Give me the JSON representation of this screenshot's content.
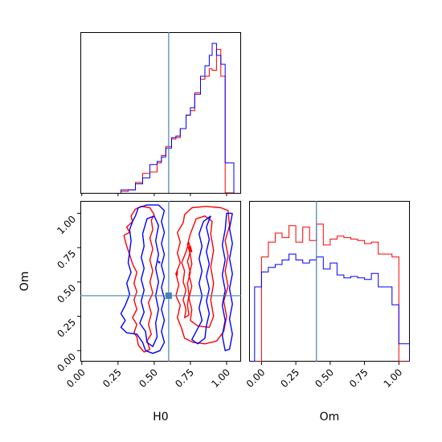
{
  "chart_data": {
    "type": "corner",
    "parameters": [
      "H0",
      "Om"
    ],
    "truth": {
      "H0": 0.6,
      "Om": 0.4
    },
    "series_colors": [
      "#ff0000",
      "#0000ff"
    ],
    "truth_color": "#4682b4",
    "grid": false,
    "axes": {
      "H0": {
        "xlim": [
          -0.01,
          1.1
        ],
        "ticks": [
          0.0,
          0.25,
          0.5,
          0.75,
          1.0
        ],
        "tick_labels": [
          "0.00",
          "0.25",
          "0.50",
          "0.75",
          "1.00"
        ],
        "xlabel": "H0"
      },
      "Om": {
        "xlim": [
          -0.09,
          1.08
        ],
        "ylim": [
          -0.08,
          1.09
        ],
        "ticks": [
          0.0,
          0.25,
          0.5,
          0.75,
          1.0
        ],
        "tick_labels": [
          "0.00",
          "0.25",
          "0.50",
          "0.75",
          "1.00"
        ],
        "xlabel": "Om",
        "ylabel": "Om"
      }
    },
    "histograms": {
      "H0": {
        "bin_edges": [
          0.27,
          0.32,
          0.37,
          0.42,
          0.47,
          0.52,
          0.55,
          0.58,
          0.62,
          0.65,
          0.68,
          0.72,
          0.75,
          0.78,
          0.82,
          0.85,
          0.88,
          0.9,
          0.93,
          0.96,
          0.99,
          1.05
        ],
        "series": [
          {
            "color": "#ff0000",
            "values": [
              0.01,
              0.02,
              0.07,
              0.13,
              0.14,
              0.2,
              0.25,
              0.31,
              0.36,
              0.37,
              0.43,
              0.52,
              0.55,
              0.67,
              0.76,
              0.78,
              0.83,
              0.82,
              0.96,
              0.78,
              0.0
            ]
          },
          {
            "color": "#0000ff",
            "values": [
              0.02,
              0.02,
              0.06,
              0.1,
              0.19,
              0.21,
              0.24,
              0.3,
              0.37,
              0.38,
              0.43,
              0.52,
              0.57,
              0.66,
              0.78,
              0.85,
              0.92,
              1.0,
              0.92,
              0.86,
              0.2
            ]
          }
        ]
      },
      "Om": {
        "bin_edges": [
          -0.09,
          -0.05,
          0.0,
          0.05,
          0.1,
          0.15,
          0.2,
          0.25,
          0.3,
          0.35,
          0.4,
          0.45,
          0.5,
          0.55,
          0.6,
          0.65,
          0.7,
          0.75,
          0.8,
          0.85,
          0.9,
          0.95,
          1.0,
          1.08
        ],
        "series": [
          {
            "color": "#ff0000",
            "values": [
              0.0,
              0.0,
              0.7,
              0.8,
              0.86,
              0.83,
              0.91,
              0.8,
              0.9,
              0.81,
              0.92,
              0.78,
              0.82,
              0.84,
              0.83,
              0.82,
              0.81,
              0.79,
              0.8,
              0.72,
              0.72,
              0.7,
              0.0
            ]
          },
          {
            "color": "#0000ff",
            "values": [
              0.0,
              0.5,
              0.6,
              0.63,
              0.65,
              0.68,
              0.72,
              0.68,
              0.66,
              0.68,
              0.7,
              0.62,
              0.66,
              0.58,
              0.56,
              0.57,
              0.56,
              0.55,
              0.59,
              0.5,
              0.5,
              0.38,
              0.12
            ]
          }
        ]
      }
    },
    "contours": [
      {
        "color": "#ff0000",
        "points": [
          [
            0.29,
            0.84
          ],
          [
            0.33,
            0.86
          ],
          [
            0.31,
            0.9
          ],
          [
            0.35,
            0.94
          ],
          [
            0.34,
            0.98
          ],
          [
            0.37,
            1.03
          ],
          [
            0.41,
            1.05
          ],
          [
            0.47,
            1.04
          ],
          [
            0.5,
            0.99
          ],
          [
            0.48,
            0.95
          ],
          [
            0.49,
            0.88
          ],
          [
            0.47,
            0.82
          ],
          [
            0.49,
            0.74
          ],
          [
            0.47,
            0.66
          ],
          [
            0.49,
            0.58
          ],
          [
            0.47,
            0.5
          ],
          [
            0.49,
            0.42
          ],
          [
            0.46,
            0.35
          ],
          [
            0.48,
            0.27
          ],
          [
            0.46,
            0.19
          ],
          [
            0.48,
            0.12
          ],
          [
            0.45,
            0.07
          ],
          [
            0.47,
            0.01
          ],
          [
            0.43,
            -0.01
          ],
          [
            0.39,
            0.04
          ],
          [
            0.38,
            0.1
          ],
          [
            0.36,
            0.13
          ],
          [
            0.38,
            0.19
          ],
          [
            0.35,
            0.24
          ],
          [
            0.38,
            0.3
          ],
          [
            0.36,
            0.37
          ],
          [
            0.38,
            0.43
          ],
          [
            0.36,
            0.49
          ],
          [
            0.38,
            0.57
          ],
          [
            0.35,
            0.63
          ],
          [
            0.33,
            0.7
          ],
          [
            0.31,
            0.76
          ],
          [
            0.29,
            0.84
          ]
        ]
      },
      {
        "color": "#ff0000",
        "points": [
          [
            0.7,
            0.93
          ],
          [
            0.66,
            0.86
          ],
          [
            0.68,
            0.79
          ],
          [
            0.66,
            0.71
          ],
          [
            0.68,
            0.64
          ],
          [
            0.65,
            0.56
          ],
          [
            0.67,
            0.48
          ],
          [
            0.65,
            0.4
          ],
          [
            0.68,
            0.33
          ],
          [
            0.66,
            0.24
          ],
          [
            0.69,
            0.16
          ],
          [
            0.71,
            0.09
          ],
          [
            0.77,
            0.06
          ],
          [
            0.85,
            0.05
          ],
          [
            0.93,
            0.07
          ],
          [
            0.98,
            0.14
          ],
          [
            1.0,
            0.25
          ],
          [
            0.98,
            0.36
          ],
          [
            1.01,
            0.47
          ],
          [
            0.99,
            0.58
          ],
          [
            1.01,
            0.69
          ],
          [
            0.99,
            0.8
          ],
          [
            1.02,
            0.91
          ],
          [
            1.01,
            1.02
          ],
          [
            0.96,
            1.04
          ],
          [
            0.86,
            1.05
          ],
          [
            0.76,
            1.04
          ],
          [
            0.71,
            0.99
          ],
          [
            0.7,
            0.93
          ]
        ]
      },
      {
        "color": "#ff0000",
        "points": [
          [
            0.75,
            0.85
          ],
          [
            0.73,
            0.77
          ],
          [
            0.75,
            0.7
          ],
          [
            0.76,
            0.63
          ],
          [
            0.74,
            0.55
          ],
          [
            0.76,
            0.47
          ],
          [
            0.74,
            0.38
          ],
          [
            0.76,
            0.3
          ],
          [
            0.75,
            0.22
          ],
          [
            0.8,
            0.18
          ],
          [
            0.88,
            0.17
          ],
          [
            0.91,
            0.25
          ],
          [
            0.89,
            0.37
          ],
          [
            0.91,
            0.49
          ],
          [
            0.89,
            0.61
          ],
          [
            0.91,
            0.73
          ],
          [
            0.89,
            0.85
          ],
          [
            0.9,
            0.94
          ],
          [
            0.85,
            0.98
          ],
          [
            0.79,
            0.96
          ],
          [
            0.75,
            0.85
          ]
        ]
      },
      {
        "color": "#ff0000",
        "points": [
          [
            0.74,
            0.79
          ],
          [
            0.72,
            0.72
          ],
          [
            0.69,
            0.64
          ],
          [
            0.71,
            0.58
          ],
          [
            0.7,
            0.5
          ],
          [
            0.72,
            0.44
          ],
          [
            0.7,
            0.37
          ],
          [
            0.72,
            0.3
          ],
          [
            0.71,
            0.24
          ],
          [
            0.74,
            0.26
          ],
          [
            0.73,
            0.33
          ],
          [
            0.74,
            0.41
          ],
          [
            0.73,
            0.49
          ],
          [
            0.75,
            0.57
          ],
          [
            0.73,
            0.65
          ],
          [
            0.75,
            0.72
          ],
          [
            0.74,
            0.79
          ]
        ]
      },
      {
        "color": "#ff0000",
        "points": [
          [
            0.74,
            0.75
          ],
          [
            0.76,
            0.72
          ],
          [
            0.75,
            0.76
          ],
          [
            0.74,
            0.75
          ]
        ]
      },
      {
        "color": "#ff0000",
        "points": [
          [
            0.65,
            0.56
          ],
          [
            0.66,
            0.55
          ],
          [
            0.66,
            0.58
          ],
          [
            0.65,
            0.56
          ]
        ]
      },
      {
        "color": "#0000ff",
        "points": [
          [
            0.37,
            0.98
          ],
          [
            0.39,
            1.04
          ],
          [
            0.45,
            1.06
          ],
          [
            0.53,
            1.06
          ],
          [
            0.57,
            1.02
          ],
          [
            0.55,
            0.94
          ],
          [
            0.57,
            0.86
          ],
          [
            0.55,
            0.78
          ],
          [
            0.57,
            0.7
          ],
          [
            0.55,
            0.62
          ],
          [
            0.57,
            0.54
          ],
          [
            0.55,
            0.46
          ],
          [
            0.57,
            0.38
          ],
          [
            0.55,
            0.3
          ],
          [
            0.57,
            0.22
          ],
          [
            0.55,
            0.14
          ],
          [
            0.57,
            0.06
          ],
          [
            0.54,
            0.0
          ],
          [
            0.49,
            -0.02
          ],
          [
            0.44,
            0.0
          ],
          [
            0.42,
            0.06
          ],
          [
            0.38,
            0.12
          ],
          [
            0.31,
            0.13
          ],
          [
            0.27,
            0.17
          ],
          [
            0.3,
            0.22
          ],
          [
            0.27,
            0.27
          ],
          [
            0.3,
            0.33
          ],
          [
            0.33,
            0.41
          ],
          [
            0.31,
            0.49
          ],
          [
            0.34,
            0.57
          ],
          [
            0.32,
            0.64
          ],
          [
            0.33,
            0.72
          ],
          [
            0.34,
            0.8
          ],
          [
            0.33,
            0.88
          ],
          [
            0.35,
            0.94
          ],
          [
            0.37,
            0.98
          ]
        ]
      },
      {
        "color": "#0000ff",
        "points": [
          [
            0.42,
            0.85
          ],
          [
            0.45,
            0.96
          ],
          [
            0.5,
            0.98
          ],
          [
            0.53,
            0.91
          ],
          [
            0.51,
            0.8
          ],
          [
            0.53,
            0.7
          ],
          [
            0.51,
            0.6
          ],
          [
            0.53,
            0.5
          ],
          [
            0.51,
            0.4
          ],
          [
            0.53,
            0.3
          ],
          [
            0.51,
            0.2
          ],
          [
            0.52,
            0.1
          ],
          [
            0.49,
            0.03
          ],
          [
            0.45,
            0.06
          ],
          [
            0.44,
            0.14
          ],
          [
            0.4,
            0.2
          ],
          [
            0.43,
            0.28
          ],
          [
            0.41,
            0.36
          ],
          [
            0.43,
            0.44
          ],
          [
            0.41,
            0.52
          ],
          [
            0.43,
            0.6
          ],
          [
            0.41,
            0.68
          ],
          [
            0.43,
            0.76
          ],
          [
            0.42,
            0.85
          ]
        ]
      },
      {
        "color": "#0000ff",
        "points": [
          [
            0.89,
            0.98
          ],
          [
            0.86,
            0.9
          ],
          [
            0.88,
            0.81
          ],
          [
            0.86,
            0.72
          ],
          [
            0.88,
            0.63
          ],
          [
            0.86,
            0.54
          ],
          [
            0.88,
            0.45
          ],
          [
            0.86,
            0.36
          ],
          [
            0.88,
            0.27
          ],
          [
            0.86,
            0.18
          ],
          [
            0.85,
            0.09
          ],
          [
            0.8,
            0.05
          ],
          [
            0.76,
            0.08
          ],
          [
            0.79,
            0.14
          ],
          [
            0.83,
            0.22
          ],
          [
            0.81,
            0.31
          ],
          [
            0.83,
            0.4
          ],
          [
            0.81,
            0.49
          ],
          [
            0.83,
            0.58
          ],
          [
            0.81,
            0.67
          ],
          [
            0.83,
            0.76
          ],
          [
            0.81,
            0.85
          ],
          [
            0.84,
            0.94
          ],
          [
            0.89,
            0.98
          ]
        ]
      },
      {
        "color": "#0000ff",
        "points": [
          [
            1.04,
            1.0
          ],
          [
            1.02,
            0.89
          ],
          [
            1.04,
            0.78
          ],
          [
            1.02,
            0.67
          ],
          [
            1.04,
            0.56
          ],
          [
            1.02,
            0.45
          ],
          [
            1.04,
            0.34
          ],
          [
            1.02,
            0.23
          ],
          [
            1.04,
            0.12
          ],
          [
            1.02,
            0.01
          ],
          [
            0.99,
            0.0
          ],
          [
            0.97,
            0.11
          ],
          [
            0.99,
            0.22
          ],
          [
            0.97,
            0.33
          ],
          [
            0.99,
            0.44
          ],
          [
            0.97,
            0.55
          ],
          [
            0.99,
            0.66
          ],
          [
            0.97,
            0.77
          ],
          [
            0.99,
            0.88
          ],
          [
            1.0,
            1.0
          ],
          [
            1.04,
            1.0
          ]
        ]
      },
      {
        "color": "#0000ff",
        "points": [
          [
            0.53,
            0.64
          ],
          [
            0.53,
            0.65
          ],
          [
            0.54,
            0.64
          ],
          [
            0.53,
            0.64
          ]
        ]
      }
    ]
  }
}
